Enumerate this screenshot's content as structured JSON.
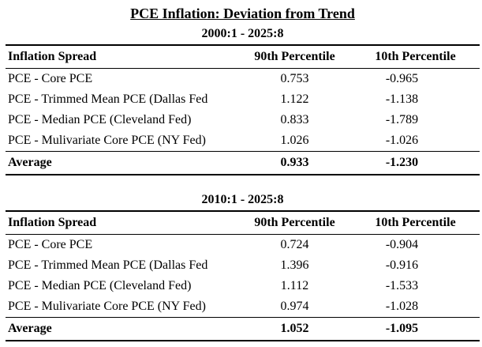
{
  "title": "PCE Inflation: Deviation from Trend",
  "colors": {
    "text": "#000000",
    "background": "#ffffff",
    "rule": "#000000"
  },
  "tables": [
    {
      "subtitle": "2000:1 - 2025:8",
      "columns": [
        "Inflation Spread",
        "90th Percentile",
        "10th Percentile"
      ],
      "rows": [
        [
          "PCE - Core PCE",
          "0.753",
          "-0.965"
        ],
        [
          "PCE - Trimmed Mean PCE (Dallas Fed",
          "1.122",
          "-1.138"
        ],
        [
          "PCE - Median PCE (Cleveland Fed)",
          "0.833",
          "-1.789"
        ],
        [
          "PCE - Mulivariate Core PCE (NY Fed)",
          "1.026",
          "-1.026"
        ]
      ],
      "footer": [
        "Average",
        "0.933",
        "-1.230"
      ]
    },
    {
      "subtitle": "2010:1 - 2025:8",
      "columns": [
        "Inflation Spread",
        "90th Percentile",
        "10th Percentile"
      ],
      "rows": [
        [
          "PCE - Core PCE",
          "0.724",
          "-0.904"
        ],
        [
          "PCE - Trimmed Mean PCE (Dallas Fed",
          "1.396",
          "-0.916"
        ],
        [
          "PCE - Median PCE (Cleveland Fed)",
          "1.112",
          "-1.533"
        ],
        [
          "PCE - Mulivariate Core PCE (NY Fed)",
          "0.974",
          "-1.028"
        ]
      ],
      "footer": [
        "Average",
        "1.052",
        "-1.095"
      ]
    }
  ],
  "chart_data": [
    {
      "type": "table",
      "title": "PCE Inflation: Deviation from Trend",
      "subtitle": "2000:1 - 2025:8",
      "columns": [
        "Inflation Spread",
        "90th Percentile",
        "10th Percentile"
      ],
      "rows": [
        {
          "inflation_spread": "PCE - Core PCE",
          "p90": 0.753,
          "p10": -0.965
        },
        {
          "inflation_spread": "PCE - Trimmed Mean PCE (Dallas Fed",
          "p90": 1.122,
          "p10": -1.138
        },
        {
          "inflation_spread": "PCE - Median PCE (Cleveland Fed)",
          "p90": 0.833,
          "p10": -1.789
        },
        {
          "inflation_spread": "PCE - Mulivariate Core PCE (NY Fed)",
          "p90": 1.026,
          "p10": -1.026
        },
        {
          "inflation_spread": "Average",
          "p90": 0.933,
          "p10": -1.23
        }
      ]
    },
    {
      "type": "table",
      "title": "PCE Inflation: Deviation from Trend",
      "subtitle": "2010:1 - 2025:8",
      "columns": [
        "Inflation Spread",
        "90th Percentile",
        "10th Percentile"
      ],
      "rows": [
        {
          "inflation_spread": "PCE - Core PCE",
          "p90": 0.724,
          "p10": -0.904
        },
        {
          "inflation_spread": "PCE - Trimmed Mean PCE (Dallas Fed",
          "p90": 1.396,
          "p10": -0.916
        },
        {
          "inflation_spread": "PCE - Median PCE (Cleveland Fed)",
          "p90": 1.112,
          "p10": -1.533
        },
        {
          "inflation_spread": "PCE - Mulivariate Core PCE (NY Fed)",
          "p90": 0.974,
          "p10": -1.028
        },
        {
          "inflation_spread": "Average",
          "p90": 1.052,
          "p10": -1.095
        }
      ]
    }
  ]
}
